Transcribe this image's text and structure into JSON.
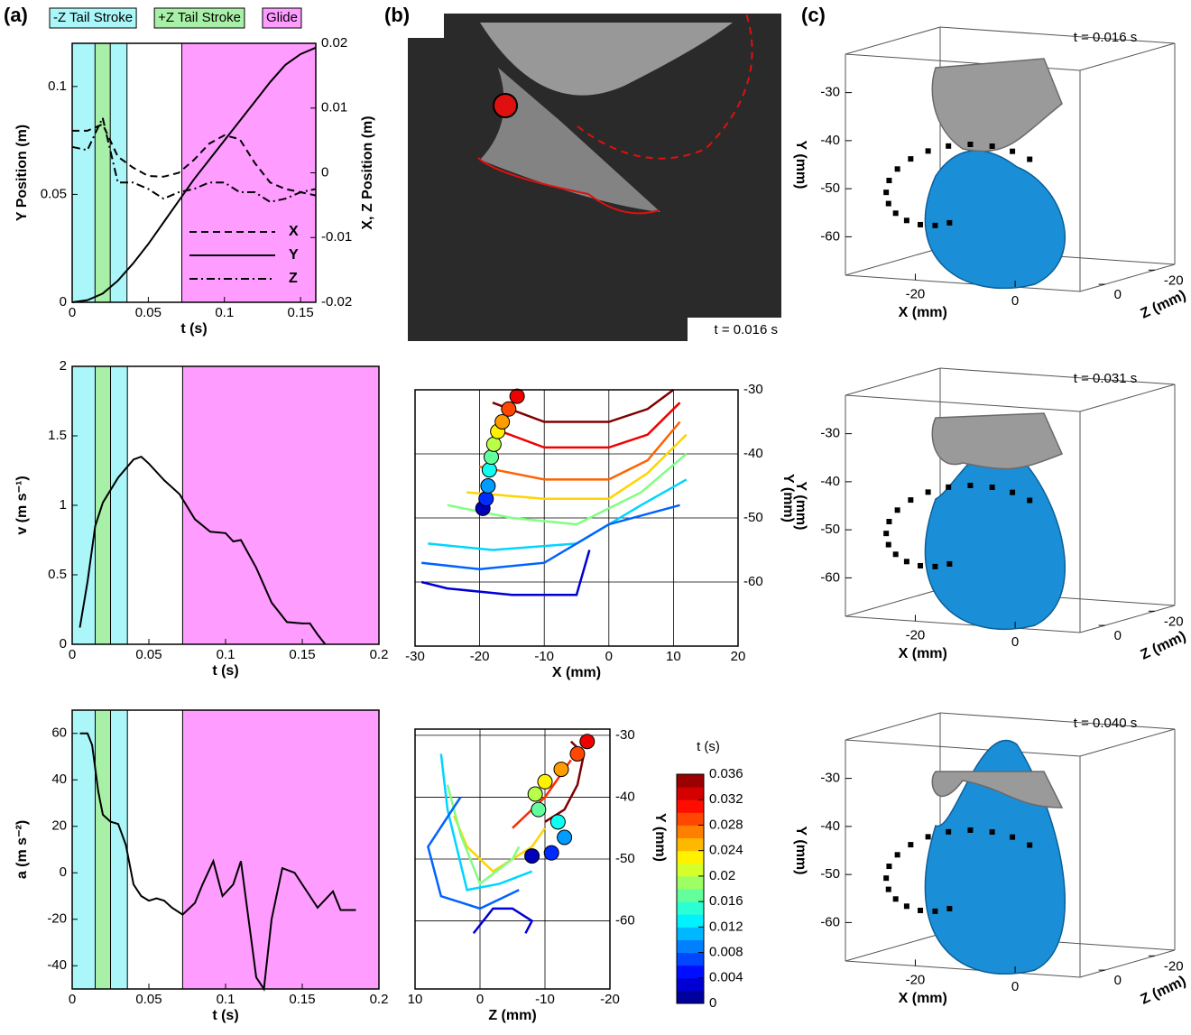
{
  "chart_data": [
    {
      "type": "line",
      "panel": "(a)",
      "xlabel": "t (s)",
      "ylabel": "Y Position (m)",
      "y2label": "X, Z Position (m)",
      "xlim": [
        0,
        0.16
      ],
      "xticks": [
        0,
        0.05,
        0.1,
        0.15
      ],
      "ylim": [
        0,
        0.12
      ],
      "yticks": [
        0,
        0.05,
        0.1
      ],
      "y2lim": [
        -0.02,
        0.02
      ],
      "y2ticks": [
        -0.02,
        -0.01,
        0,
        0.01,
        0.02
      ],
      "legend": "lower right",
      "spans": [
        {
          "label": "-Z Tail Stroke",
          "color": "#aaf6f8",
          "start": 0,
          "end": 0.036
        },
        {
          "label": "+Z Tail Stroke",
          "color": "#a8f0a8",
          "start": 0.015,
          "end": 0.025
        },
        {
          "label": "Glide",
          "color": "#ff9cff",
          "start": 0.072,
          "end": 0.16
        }
      ],
      "x": [
        0,
        0.01,
        0.02,
        0.03,
        0.04,
        0.05,
        0.06,
        0.07,
        0.08,
        0.09,
        0.1,
        0.11,
        0.12,
        0.13,
        0.14,
        0.15,
        0.16
      ],
      "series": [
        {
          "name": "X",
          "color": "#000000",
          "style": "dashed",
          "axis": "y2",
          "values": [
            0.0065,
            0.0065,
            0.0075,
            0.0025,
            0.0008,
            -0.0005,
            -0.0006,
            0,
            0.002,
            0.0045,
            0.0058,
            0.0052,
            0.0015,
            -0.0015,
            -0.0025,
            -0.003,
            -0.0035
          ]
        },
        {
          "name": "Y",
          "color": "#000000",
          "style": "solid",
          "values": [
            0,
            0.001,
            0.004,
            0.01,
            0.018,
            0.027,
            0.037,
            0.047,
            0.057,
            0.066,
            0.075,
            0.084,
            0.093,
            0.102,
            0.11,
            0.115,
            0.118
          ]
        },
        {
          "name": "Z",
          "color": "#000000",
          "style": "dashdot",
          "axis": "y2",
          "values": [
            0.004,
            0.0035,
            0.0085,
            -0.0015,
            -0.0015,
            -0.0025,
            -0.004,
            -0.003,
            -0.0025,
            -0.0015,
            -0.0015,
            -0.003,
            -0.003,
            -0.0045,
            -0.004,
            -0.003,
            -0.0025
          ]
        }
      ]
    },
    {
      "type": "line",
      "xlabel": "t (s)",
      "ylabel": "v (m s⁻¹)",
      "xlim": [
        0,
        0.2
      ],
      "xticks": [
        0,
        0.05,
        0.1,
        0.15,
        0.2
      ],
      "ylim": [
        0,
        2
      ],
      "yticks": [
        0,
        0.5,
        1,
        1.5,
        2
      ],
      "spans": [
        {
          "color": "#aaf6f8",
          "start": 0,
          "end": 0.036
        },
        {
          "color": "#a8f0a8",
          "start": 0.015,
          "end": 0.025
        },
        {
          "color": "#ff9cff",
          "start": 0.072,
          "end": 0.2
        }
      ],
      "x": [
        0.005,
        0.01,
        0.015,
        0.02,
        0.03,
        0.04,
        0.045,
        0.05,
        0.06,
        0.07,
        0.08,
        0.09,
        0.1,
        0.105,
        0.11,
        0.12,
        0.13,
        0.14,
        0.15,
        0.155,
        0.16,
        0.165
      ],
      "series": [
        {
          "color": "#000000",
          "style": "solid",
          "values": [
            0.12,
            0.45,
            0.85,
            1.02,
            1.2,
            1.33,
            1.35,
            1.3,
            1.18,
            1.08,
            0.9,
            0.81,
            0.8,
            0.74,
            0.75,
            0.55,
            0.3,
            0.16,
            0.15,
            0.15,
            0.07,
            0
          ]
        }
      ]
    },
    {
      "type": "line",
      "xlabel": "t (s)",
      "ylabel": "a (m s⁻²)",
      "xlim": [
        0,
        0.2
      ],
      "xticks": [
        0,
        0.05,
        0.1,
        0.15,
        0.2
      ],
      "ylim": [
        -50,
        70
      ],
      "yticks": [
        -40,
        -20,
        0,
        20,
        40,
        60
      ],
      "spans": [
        {
          "color": "#aaf6f8",
          "start": 0,
          "end": 0.036
        },
        {
          "color": "#a8f0a8",
          "start": 0.015,
          "end": 0.025
        },
        {
          "color": "#ff9cff",
          "start": 0.072,
          "end": 0.2
        }
      ],
      "x": [
        0.005,
        0.01,
        0.013,
        0.017,
        0.02,
        0.025,
        0.03,
        0.035,
        0.04,
        0.045,
        0.05,
        0.055,
        0.06,
        0.065,
        0.072,
        0.08,
        0.085,
        0.092,
        0.098,
        0.105,
        0.11,
        0.115,
        0.12,
        0.125,
        0.13,
        0.137,
        0.145,
        0.155,
        0.16,
        0.17,
        0.175,
        0.185
      ],
      "series": [
        {
          "color": "#000000",
          "style": "solid",
          "values": [
            60,
            60,
            55,
            35,
            25,
            22,
            21,
            12,
            -5,
            -10,
            -12,
            -11,
            -12,
            -15,
            -18,
            -13,
            -5,
            5,
            -10,
            -5,
            5,
            -20,
            -45,
            -50,
            -20,
            2,
            0,
            -10,
            -15,
            -8,
            -16,
            -16
          ]
        }
      ]
    },
    {
      "type": "image",
      "panel": "(b)",
      "annotation": "t = 0.016 s"
    },
    {
      "type": "scatter",
      "xlabel": "X (mm)",
      "ylabel": "Y (mm)",
      "grid": true,
      "xlim": [
        -30,
        20
      ],
      "xticks": [
        -30,
        -20,
        -10,
        0,
        10,
        20
      ],
      "ylim": [
        -70,
        -30
      ],
      "yticks": [
        -30,
        -40,
        -50,
        -60
      ],
      "clim": [
        0,
        0.036
      ],
      "points": {
        "x": [
          -19.5,
          -19,
          -18.7,
          -18.5,
          -18.2,
          -17.8,
          -17.2,
          -16.5,
          -15.5,
          -14.2
        ],
        "y": [
          -48.5,
          -47,
          -45,
          -42.5,
          -40.5,
          -38.5,
          -36.5,
          -35,
          -33,
          -31
        ],
        "t": [
          0.002,
          0.006,
          0.01,
          0.014,
          0.017,
          0.02,
          0.023,
          0.026,
          0.029,
          0.032
        ]
      },
      "streaks": [
        {
          "t": 0.036,
          "x": [
            -18,
            -10,
            0,
            6,
            10
          ],
          "y": [
            -32,
            -35,
            -35,
            -33,
            -30
          ]
        },
        {
          "t": 0.032,
          "x": [
            -18,
            -10,
            0,
            6,
            11
          ],
          "y": [
            -36,
            -39,
            -39,
            -37,
            -32
          ]
        },
        {
          "t": 0.028,
          "x": [
            -20,
            -10,
            0,
            6,
            11
          ],
          "y": [
            -42,
            -44,
            -44,
            -41,
            -35
          ]
        },
        {
          "t": 0.024,
          "x": [
            -22,
            -10,
            0,
            6,
            12
          ],
          "y": [
            -46,
            -47,
            -47,
            -43,
            -37
          ]
        },
        {
          "t": 0.018,
          "x": [
            -25,
            -15,
            -5,
            5,
            12
          ],
          "y": [
            -48,
            -50,
            -51,
            -46,
            -40
          ]
        },
        {
          "t": 0.012,
          "x": [
            -28,
            -18,
            -5,
            5,
            12
          ],
          "y": [
            -54,
            -55,
            -54,
            -48,
            -44
          ]
        },
        {
          "t": 0.008,
          "x": [
            -29,
            -20,
            -10,
            0,
            11
          ],
          "y": [
            -57,
            -58,
            -57,
            -51,
            -48
          ]
        },
        {
          "t": 0.003,
          "x": [
            -29,
            -25,
            -15,
            -5,
            -3
          ],
          "y": [
            -60,
            -61,
            -62,
            -62,
            -55
          ]
        }
      ]
    },
    {
      "type": "scatter",
      "xlabel": "Z (mm)",
      "ylabel": "Y (mm)",
      "grid": true,
      "xlim": [
        10,
        -20
      ],
      "xticks": [
        10,
        0,
        -10,
        -20
      ],
      "ylim": [
        -71,
        -29
      ],
      "yticks": [
        -30,
        -40,
        -50,
        -60
      ],
      "clim": [
        0,
        0.036
      ],
      "points": {
        "x": [
          -8,
          -11,
          -13,
          -12,
          -9,
          -8.5,
          -10,
          -12.5,
          -15,
          -16.5
        ],
        "y": [
          -49.5,
          -49,
          -46.5,
          -44,
          -42,
          -39.5,
          -37.5,
          -35.5,
          -33,
          -31
        ],
        "t": [
          0.002,
          0.006,
          0.01,
          0.014,
          0.017,
          0.02,
          0.023,
          0.026,
          0.029,
          0.032
        ]
      },
      "streaks": [
        {
          "t": 0.036,
          "x": [
            -10,
            -13,
            -15,
            -16,
            -14
          ],
          "y": [
            -44,
            -42,
            -38,
            -33,
            -31
          ]
        },
        {
          "t": 0.03,
          "x": [
            -5,
            -8,
            -10,
            -12,
            -14
          ],
          "y": [
            -45,
            -42,
            -40,
            -37,
            -34
          ]
        },
        {
          "t": 0.024,
          "x": [
            4,
            2,
            -2,
            -8,
            -10
          ],
          "y": [
            -43,
            -48,
            -52,
            -48,
            -45
          ]
        },
        {
          "t": 0.018,
          "x": [
            5,
            3,
            0,
            -5,
            -6
          ],
          "y": [
            -38,
            -46,
            -54,
            -50,
            -48
          ]
        },
        {
          "t": 0.012,
          "x": [
            6,
            5,
            2,
            -3,
            -8
          ],
          "y": [
            -33,
            -42,
            -55,
            -54,
            -52
          ]
        },
        {
          "t": 0.008,
          "x": [
            3,
            8,
            6,
            0,
            -6
          ],
          "y": [
            -40,
            -48,
            -56,
            -58,
            -55
          ]
        },
        {
          "t": 0.003,
          "x": [
            1,
            -2,
            -5,
            -8,
            -7
          ],
          "y": [
            -62,
            -58,
            -58,
            -60,
            -62
          ]
        }
      ],
      "colorbar": {
        "title": "t (s)",
        "ticks": [
          0,
          0.004,
          0.008,
          0.012,
          0.016,
          0.02,
          0.024,
          0.028,
          0.032,
          0.036
        ]
      }
    },
    {
      "type": "surface3d",
      "panel": "(c)",
      "title": "t = 0.016 s",
      "xlabel": "X (mm)",
      "ylabel": "Y (mm)",
      "zlabel": "Z (mm)",
      "xlim": [
        -34,
        13
      ],
      "xticks": [
        -20,
        0
      ],
      "ylim": [
        -68,
        -22
      ],
      "yticks": [
        -30,
        -40,
        -50,
        -60
      ],
      "zlim": [
        10,
        -28
      ],
      "zticks": [
        0,
        -20
      ]
    },
    {
      "type": "surface3d",
      "title": "t = 0.031 s",
      "xlabel": "X (mm)",
      "ylabel": "Y (mm)",
      "zlabel": "Z (mm)",
      "xlim": [
        -34,
        13
      ],
      "xticks": [
        -20,
        0
      ],
      "ylim": [
        -68,
        -22
      ],
      "yticks": [
        -30,
        -40,
        -50,
        -60
      ],
      "zlim": [
        10,
        -28
      ],
      "zticks": [
        0,
        -20
      ]
    },
    {
      "type": "surface3d",
      "title": "t = 0.040 s",
      "xlabel": "X (mm)",
      "ylabel": "Y (mm)",
      "zlabel": "Z (mm)",
      "xlim": [
        -34,
        13
      ],
      "xticks": [
        -20,
        0
      ],
      "ylim": [
        -68,
        -22
      ],
      "yticks": [
        -30,
        -40,
        -50,
        -60
      ],
      "zlim": [
        10,
        -28
      ],
      "zticks": [
        0,
        -20
      ]
    }
  ]
}
